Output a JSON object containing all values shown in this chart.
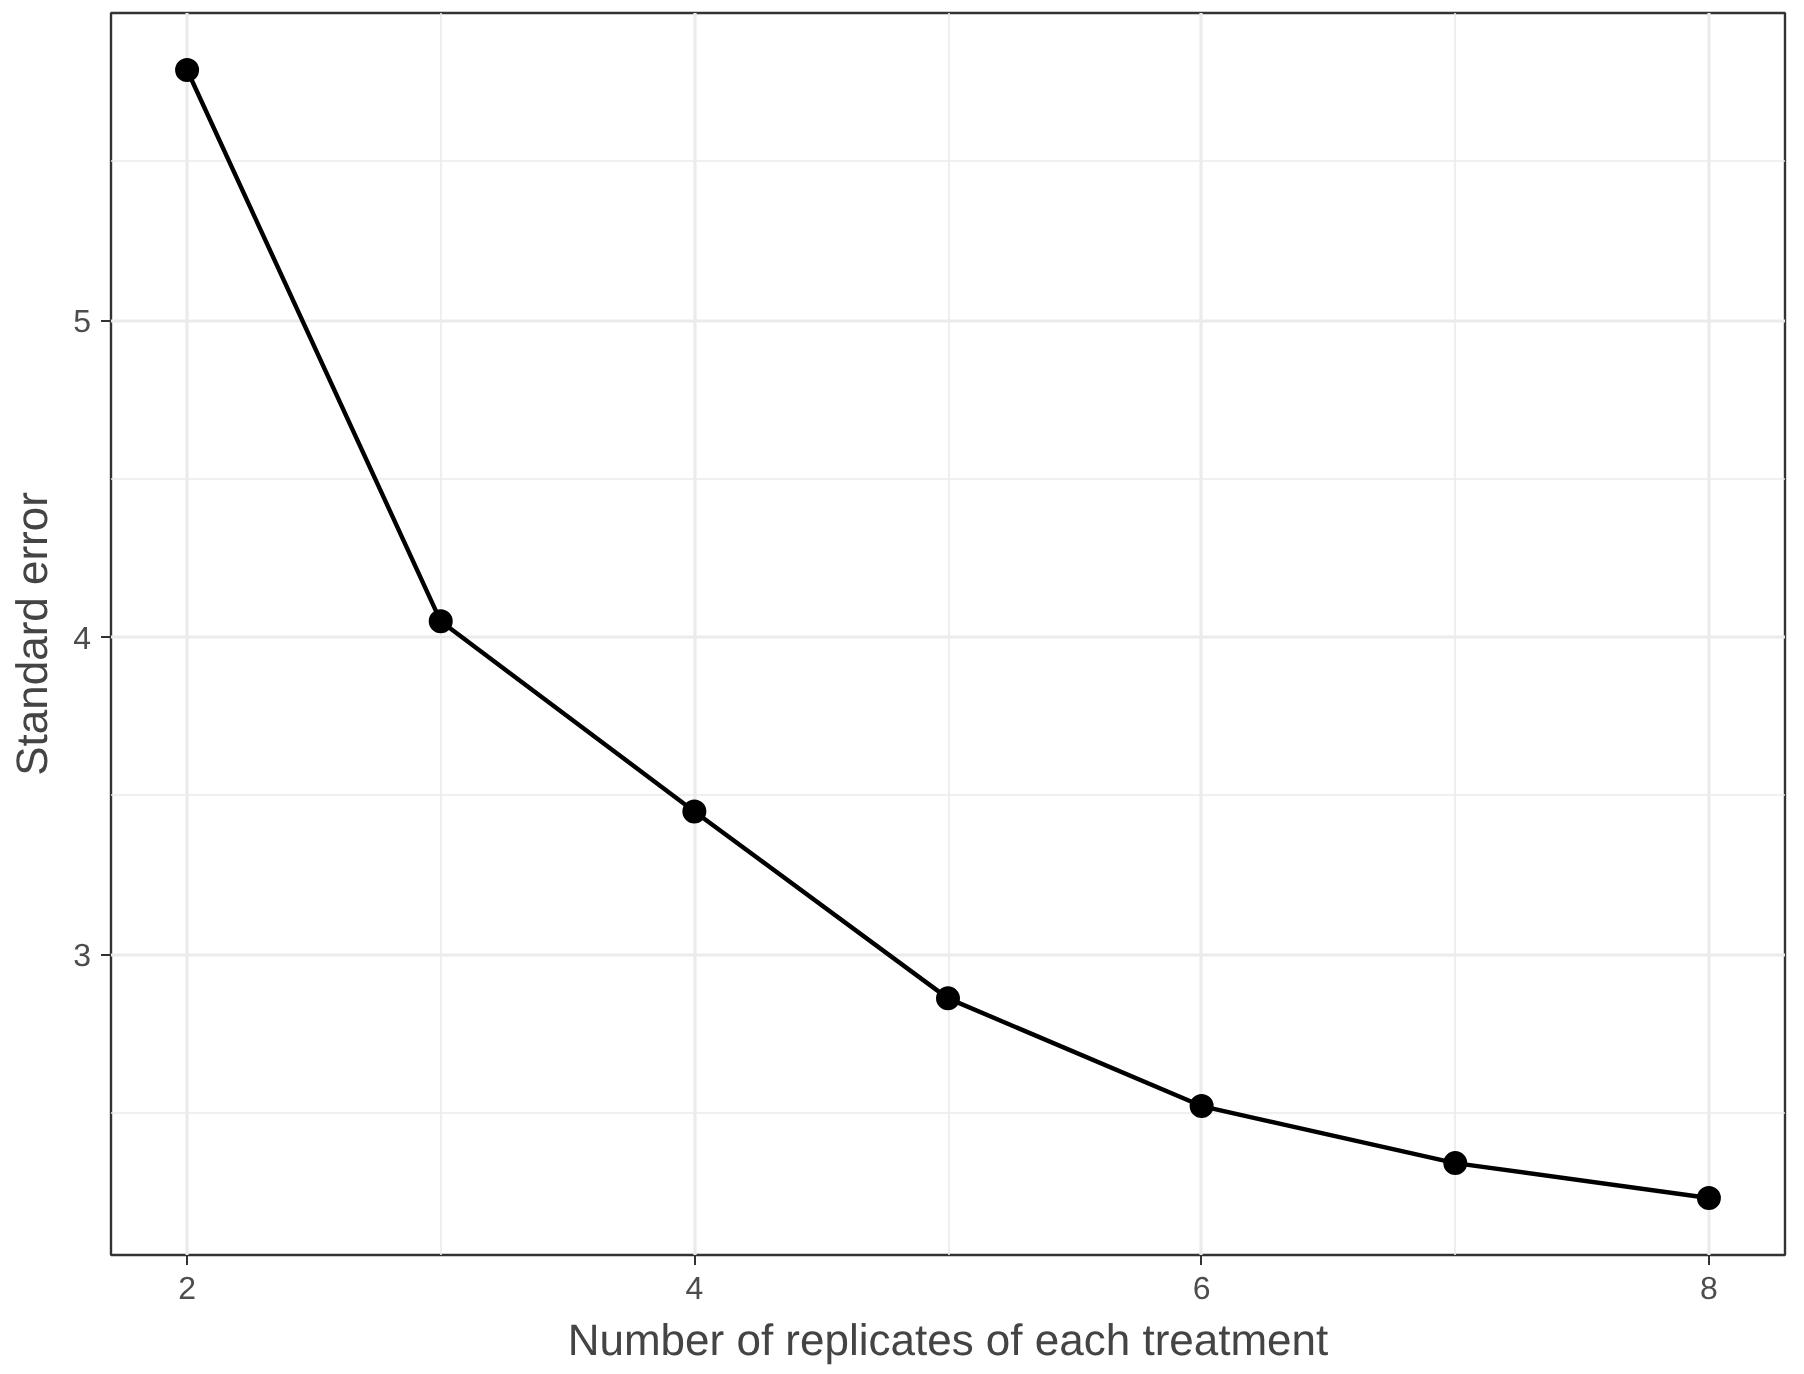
{
  "chart_data": {
    "type": "line",
    "xlabel": "Number of replicates of each treatment",
    "ylabel": "Standard error",
    "x": [
      2,
      3,
      4,
      5,
      6,
      7,
      8
    ],
    "series": [
      {
        "color": "#000000",
        "values": [
          5.79,
          4.05,
          3.45,
          2.86,
          2.52,
          2.34,
          2.23
        ]
      }
    ],
    "xlim": [
      1.7,
      8.3
    ],
    "ylim": [
      2.05,
      5.97
    ],
    "xticks": [
      2,
      4,
      6,
      8
    ],
    "yticks": [
      3,
      4,
      5
    ],
    "grid": true,
    "marker": "circle",
    "line_style": "solid"
  }
}
